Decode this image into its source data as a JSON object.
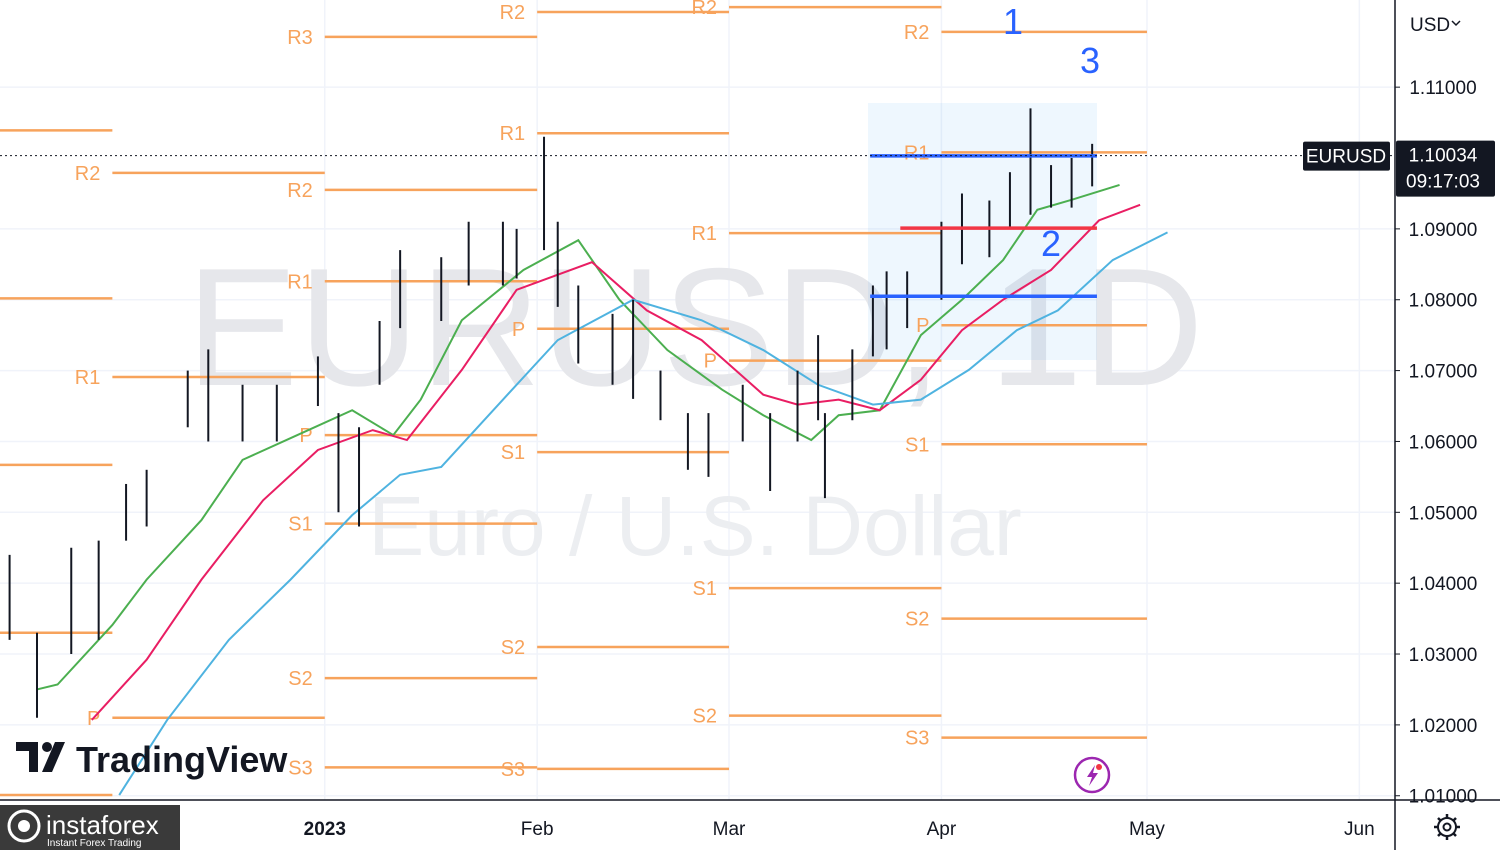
{
  "chart_data": {
    "type": "ohlc",
    "title": "EURUSD, 1D",
    "subtitle": "Euro / U.S. Dollar",
    "symbol": "EURUSD",
    "currency": "USD",
    "last_price": 1.10034,
    "countdown": "09:17:03",
    "grid": true,
    "xlim": [
      -47.4,
      156.2
    ],
    "ylim": [
      1.0094,
      1.1223
    ],
    "xticks": [
      {
        "value": 0,
        "label": "2023"
      },
      {
        "value": 31,
        "label": "Feb"
      },
      {
        "value": 59,
        "label": "Mar"
      },
      {
        "value": 90,
        "label": "Apr"
      },
      {
        "value": 120,
        "label": "May"
      },
      {
        "value": 151,
        "label": "Jun"
      }
    ],
    "yticks": [
      {
        "value": 1.11,
        "label": "1.11000"
      },
      {
        "value": 1.09,
        "label": "1.09000"
      },
      {
        "value": 1.08,
        "label": "1.08000"
      },
      {
        "value": 1.07,
        "label": "1.07000"
      },
      {
        "value": 1.06,
        "label": "1.06000"
      },
      {
        "value": 1.05,
        "label": "1.05000"
      },
      {
        "value": 1.04,
        "label": "1.04000"
      },
      {
        "value": 1.03,
        "label": "1.03000"
      },
      {
        "value": 1.02,
        "label": "1.02000"
      },
      {
        "value": 1.01,
        "label": "1.01000"
      }
    ],
    "bar_color": "#131722",
    "bars": {
      "x": [
        -46,
        -42,
        -37,
        -33,
        -29,
        -26,
        -20,
        -17,
        -12,
        -7,
        -1,
        2,
        5,
        8,
        11,
        17,
        21,
        26,
        28,
        32,
        34,
        37,
        42,
        45,
        49,
        53,
        56,
        61,
        65,
        69,
        72,
        73,
        77,
        80,
        82,
        85,
        90,
        93,
        97,
        100,
        103,
        106,
        109,
        112
      ],
      "low": [
        1.032,
        1.021,
        1.03,
        1.032,
        1.046,
        1.048,
        1.062,
        1.06,
        1.06,
        1.06,
        1.065,
        1.05,
        1.048,
        1.068,
        1.076,
        1.077,
        1.082,
        1.082,
        1.083,
        1.087,
        1.079,
        1.071,
        1.068,
        1.066,
        1.063,
        1.056,
        1.055,
        1.06,
        1.053,
        1.06,
        1.063,
        1.052,
        1.063,
        1.072,
        1.073,
        1.076,
        1.08,
        1.085,
        1.086,
        1.09,
        1.092,
        1.093,
        1.093,
        1.096
      ],
      "high": [
        1.044,
        1.033,
        1.045,
        1.046,
        1.054,
        1.056,
        1.07,
        1.073,
        1.068,
        1.068,
        1.072,
        1.064,
        1.062,
        1.077,
        1.087,
        1.086,
        1.091,
        1.091,
        1.09,
        1.103,
        1.091,
        1.082,
        1.078,
        1.08,
        1.07,
        1.064,
        1.064,
        1.068,
        1.064,
        1.07,
        1.075,
        1.064,
        1.073,
        1.082,
        1.084,
        1.084,
        1.091,
        1.095,
        1.094,
        1.098,
        1.107,
        1.099,
        1.1,
        1.102
      ]
    },
    "series": [
      {
        "color": "#4caf50",
        "x": [
          -42,
          -39,
          -31,
          -26,
          -18,
          -12,
          -4,
          4,
          10,
          14,
          20,
          29,
          37,
          43,
          50,
          58,
          64,
          71,
          75,
          81,
          87,
          93,
          99,
          104,
          109,
          116
        ],
        "values": [
          1.025,
          1.0257,
          1.0341,
          1.0405,
          1.0489,
          1.0574,
          1.0609,
          1.0644,
          1.0609,
          1.0659,
          1.0771,
          1.0842,
          1.0884,
          1.08,
          1.0729,
          1.0673,
          1.0637,
          1.0602,
          1.0637,
          1.0644,
          1.075,
          1.08,
          1.0856,
          1.0927,
          1.0941,
          1.0962
        ]
      },
      {
        "color": "#e91e63",
        "x": [
          -34,
          -26,
          -18,
          -9,
          -1,
          7,
          12,
          20,
          28,
          39,
          47,
          55,
          64,
          69,
          75,
          81,
          87,
          93,
          99,
          106,
          113,
          119
        ],
        "values": [
          1.0207,
          1.0292,
          1.0405,
          1.0517,
          1.0588,
          1.0616,
          1.0602,
          1.0701,
          1.0814,
          1.0853,
          1.0785,
          1.0743,
          1.0666,
          1.0652,
          1.0659,
          1.0644,
          1.0687,
          1.0757,
          1.08,
          1.0842,
          1.0912,
          1.0934
        ]
      },
      {
        "color": "#4fb3e0",
        "x": [
          -30,
          -23,
          -14,
          -5,
          4,
          11,
          17,
          26,
          34,
          45,
          55,
          64,
          72,
          80,
          87,
          94,
          101,
          107,
          115,
          123
        ],
        "values": [
          1.0101,
          1.0207,
          1.032,
          1.0405,
          1.0496,
          1.0553,
          1.0564,
          1.0659,
          1.0743,
          1.08,
          1.0771,
          1.0729,
          1.068,
          1.0652,
          1.0659,
          1.0701,
          1.0757,
          1.0785,
          1.0856,
          1.0895
        ]
      }
    ],
    "pivot_color": "#f7a35c",
    "pivots": [
      {
        "x": [
          -47.4,
          -31
        ],
        "value": 1.1039
      },
      {
        "x": [
          -47.4,
          -31
        ],
        "value": 1.0802
      },
      {
        "x": [
          -47.4,
          -31
        ],
        "value": 1.0567
      },
      {
        "x": [
          -47.4,
          -31
        ],
        "value": 1.033
      },
      {
        "x": [
          -47.4,
          -31
        ],
        "value": 1.0101
      },
      {
        "x": [
          -31,
          0
        ],
        "value": 1.0979,
        "label": "R2"
      },
      {
        "x": [
          -31,
          0
        ],
        "value": 1.0691,
        "label": "R1"
      },
      {
        "x": [
          -31,
          0
        ],
        "value": 1.021,
        "label": "P"
      },
      {
        "x": [
          0,
          31
        ],
        "value": 1.1171,
        "label": "R3"
      },
      {
        "x": [
          0,
          31
        ],
        "value": 1.0955,
        "label": "R2"
      },
      {
        "x": [
          0,
          31
        ],
        "value": 1.0826,
        "label": "R1"
      },
      {
        "x": [
          0,
          31
        ],
        "value": 1.0609,
        "label": "P"
      },
      {
        "x": [
          0,
          31
        ],
        "value": 1.0484,
        "label": "S1"
      },
      {
        "x": [
          0,
          31
        ],
        "value": 1.0266,
        "label": "S2"
      },
      {
        "x": [
          0,
          31
        ],
        "value": 1.014,
        "label": "S3"
      },
      {
        "x": [
          31,
          59
        ],
        "value": 1.1206,
        "label": "R2"
      },
      {
        "x": [
          31,
          59
        ],
        "value": 1.1035,
        "label": "R1"
      },
      {
        "x": [
          31,
          59
        ],
        "value": 1.0759,
        "label": "P"
      },
      {
        "x": [
          31,
          59
        ],
        "value": 1.0585,
        "label": "S1"
      },
      {
        "x": [
          31,
          59
        ],
        "value": 1.031,
        "label": "S2"
      },
      {
        "x": [
          31,
          59
        ],
        "value": 1.0138,
        "label": "S3"
      },
      {
        "x": [
          59,
          90
        ],
        "value": 1.1213,
        "label": "R2"
      },
      {
        "x": [
          59,
          90
        ],
        "value": 1.0894,
        "label": "R1"
      },
      {
        "x": [
          59,
          90
        ],
        "value": 1.0714,
        "label": "P"
      },
      {
        "x": [
          59,
          90
        ],
        "value": 1.0393,
        "label": "S1"
      },
      {
        "x": [
          59,
          90
        ],
        "value": 1.0213,
        "label": "S2"
      },
      {
        "x": [
          90,
          120
        ],
        "value": 1.1178,
        "label": "R2"
      },
      {
        "x": [
          90,
          120
        ],
        "value": 1.1008,
        "label": "R1"
      },
      {
        "x": [
          90,
          120
        ],
        "value": 1.0764,
        "label": "P"
      },
      {
        "x": [
          90,
          120
        ],
        "value": 1.0596,
        "label": "S1"
      },
      {
        "x": [
          90,
          120
        ],
        "value": 1.035,
        "label": "S2"
      },
      {
        "x": [
          90,
          120
        ],
        "value": 1.0182,
        "label": "S3"
      }
    ],
    "levels": [
      {
        "x": [
          79.6,
          112.7
        ],
        "value": 1.1003,
        "color": "#2962ff"
      },
      {
        "x": [
          84,
          112.7
        ],
        "value": 1.0901,
        "color": "#f23645"
      },
      {
        "x": [
          79.6,
          112.7
        ],
        "value": 1.0805,
        "color": "#2962ff"
      }
    ],
    "annotations": [
      "1",
      "2",
      "3"
    ],
    "logos": {
      "tradingview": "TradingView",
      "instaforex": "instaforex",
      "instaforex_tagline": "Instant Forex Trading"
    }
  }
}
